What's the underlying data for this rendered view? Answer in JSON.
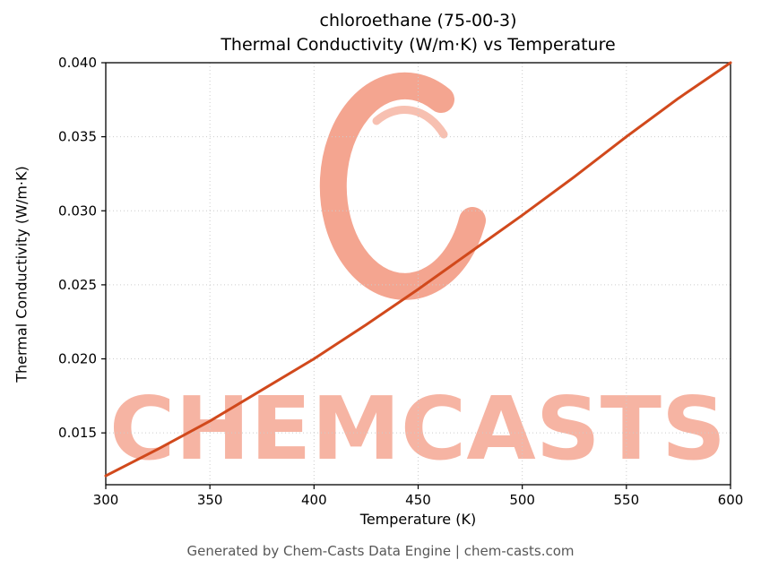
{
  "title_line1": "chloroethane (75-00-3)",
  "title_line2": "Thermal Conductivity (W/m·K) vs Temperature",
  "footer": "Generated by Chem-Casts Data Engine | chem-casts.com",
  "watermark": {
    "text": "CHEMCASTS",
    "text_color": "#f6b4a3",
    "logo_color": "#f4a590"
  },
  "chart_data": {
    "type": "line",
    "title": "chloroethane (75-00-3)\nThermal Conductivity (W/m·K) vs Temperature",
    "xlabel": "Temperature (K)",
    "ylabel": "Thermal Conductivity (W/m·K)",
    "xlim": [
      300,
      600
    ],
    "ylim": [
      0.0115,
      0.04
    ],
    "xticks": [
      300,
      350,
      400,
      450,
      500,
      550,
      600
    ],
    "xtick_labels": [
      "300",
      "350",
      "400",
      "450",
      "500",
      "550",
      "600"
    ],
    "yticks": [
      0.015,
      0.02,
      0.025,
      0.03,
      0.035,
      0.04
    ],
    "ytick_labels": [
      "0.015",
      "0.020",
      "0.025",
      "0.030",
      "0.035",
      "0.040"
    ],
    "grid": true,
    "legend": "none",
    "line_color": "#d1491c",
    "series": [
      {
        "name": "thermal_conductivity",
        "x": [
          300,
          325,
          350,
          375,
          400,
          425,
          450,
          475,
          500,
          525,
          550,
          575,
          600
        ],
        "y": [
          0.0121,
          0.0139,
          0.0158,
          0.0179,
          0.02,
          0.0223,
          0.0247,
          0.0272,
          0.0297,
          0.0323,
          0.035,
          0.0376,
          0.04
        ]
      }
    ]
  }
}
